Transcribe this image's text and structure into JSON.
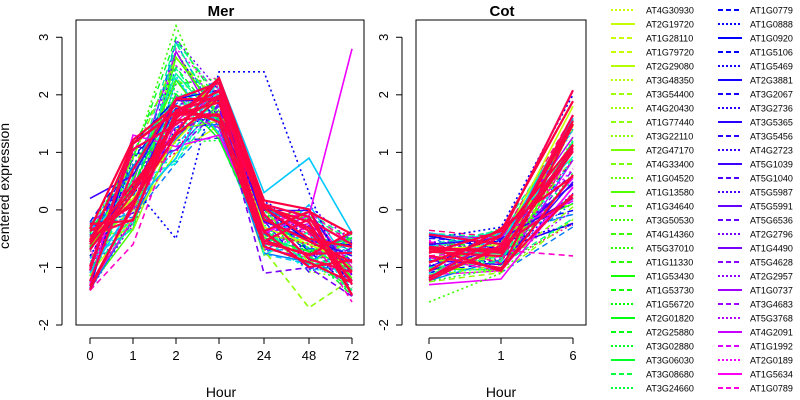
{
  "chart_data": [
    {
      "type": "line",
      "title": "Mer",
      "xlabel": "Hour",
      "ylabel": "centered expression",
      "categories": [
        "0",
        "1",
        "2",
        "6",
        "24",
        "48",
        "72"
      ],
      "y_ticks": [
        "-2",
        "-1",
        "0",
        "1",
        "2",
        "3"
      ],
      "ylim": [
        -2,
        3.3
      ],
      "representative_series": [
        {
          "values": [
            -0.5,
            0.2,
            1.2,
            2.0,
            -0.3,
            -0.6,
            -0.9
          ]
        },
        {
          "values": [
            -1.0,
            -0.3,
            2.9,
            1.6,
            -0.4,
            -0.8,
            -1.4
          ]
        },
        {
          "values": [
            -0.8,
            0.4,
            -0.5,
            2.4,
            2.4,
            0.3,
            -1.5
          ]
        },
        {
          "values": [
            -1.3,
            1.3,
            1.1,
            1.3,
            -0.4,
            -0.1,
            2.8
          ]
        },
        {
          "values": [
            -0.6,
            0.0,
            1.6,
            2.2,
            -0.7,
            -1.7,
            -1.2
          ]
        },
        {
          "values": [
            -0.9,
            -0.2,
            1.8,
            2.0,
            -0.5,
            -0.9,
            -1.3
          ]
        },
        {
          "values": [
            0.2,
            0.6,
            1.9,
            1.9,
            -0.2,
            -0.5,
            -0.8
          ]
        },
        {
          "values": [
            -1.4,
            -0.6,
            1.4,
            2.1,
            0.1,
            -0.4,
            -1.6
          ]
        },
        {
          "values": [
            -0.3,
            0.9,
            3.2,
            1.5,
            -0.6,
            -0.7,
            -1.0
          ]
        },
        {
          "values": [
            -1.1,
            0.1,
            0.9,
            2.3,
            0.3,
            0.9,
            -0.4
          ]
        },
        {
          "values": [
            -0.7,
            0.3,
            1.3,
            1.8,
            -1.1,
            -1.0,
            -1.5
          ]
        },
        {
          "values": [
            -1.0,
            0.5,
            1.0,
            2.2,
            -0.4,
            -0.6,
            -1.3
          ]
        }
      ],
      "series_note": "dense overplot of ~60 gene profiles; red bold trend on top"
    },
    {
      "type": "line",
      "title": "Cot",
      "xlabel": "Hour",
      "categories": [
        "0",
        "1",
        "6"
      ],
      "y_ticks": [
        "-2",
        "-1",
        "0",
        "1",
        "2",
        "3"
      ],
      "ylim": [
        -2,
        3.3
      ],
      "representative_series": [
        {
          "values": [
            -0.7,
            -0.6,
            1.8
          ]
        },
        {
          "values": [
            -1.0,
            -0.9,
            1.2
          ]
        },
        {
          "values": [
            -0.5,
            -0.3,
            2.0
          ]
        },
        {
          "values": [
            -1.3,
            -1.2,
            0.4
          ]
        },
        {
          "values": [
            -0.9,
            -0.8,
            1.5
          ]
        },
        {
          "values": [
            -1.1,
            -1.0,
            0.9
          ]
        },
        {
          "values": [
            -0.6,
            -0.5,
            0.2
          ]
        },
        {
          "values": [
            -0.8,
            -0.7,
            -0.8
          ]
        },
        {
          "values": [
            -1.6,
            -1.1,
            1.1
          ]
        },
        {
          "values": [
            -0.4,
            -0.6,
            1.6
          ]
        }
      ]
    }
  ],
  "legend": {
    "col1": [
      {
        "label": "AT4G30930",
        "color": "#c8ff00",
        "dash": "dot"
      },
      {
        "label": "AT2G19720",
        "color": "#c8ff00",
        "dash": "solid"
      },
      {
        "label": "AT1G28110",
        "color": "#c8ff00",
        "dash": "dash"
      },
      {
        "label": "AT1G79720",
        "color": "#c8ff00",
        "dash": "dash"
      },
      {
        "label": "AT2G29080",
        "color": "#b4ff00",
        "dash": "solid"
      },
      {
        "label": "AT3G48350",
        "color": "#b4ff00",
        "dash": "dot"
      },
      {
        "label": "AT3G54400",
        "color": "#a0ff00",
        "dash": "dash"
      },
      {
        "label": "AT4G20430",
        "color": "#a0ff00",
        "dash": "dot"
      },
      {
        "label": "AT1G77440",
        "color": "#8cff00",
        "dash": "dash"
      },
      {
        "label": "AT3G22110",
        "color": "#8cff00",
        "dash": "dot"
      },
      {
        "label": "AT2G47170",
        "color": "#78ff00",
        "dash": "solid"
      },
      {
        "label": "AT4G33400",
        "color": "#78ff00",
        "dash": "dash"
      },
      {
        "label": "AT1G04520",
        "color": "#64ff00",
        "dash": "dot"
      },
      {
        "label": "AT1G13580",
        "color": "#50ff00",
        "dash": "solid"
      },
      {
        "label": "AT1G34640",
        "color": "#50ff00",
        "dash": "dash"
      },
      {
        "label": "AT3G50530",
        "color": "#3cff00",
        "dash": "dot"
      },
      {
        "label": "AT4G14360",
        "color": "#3cff00",
        "dash": "dash"
      },
      {
        "label": "AT5G37010",
        "color": "#28ff00",
        "dash": "dot"
      },
      {
        "label": "AT1G11330",
        "color": "#28ff00",
        "dash": "dash"
      },
      {
        "label": "AT1G53430",
        "color": "#14ff00",
        "dash": "solid"
      },
      {
        "label": "AT1G53730",
        "color": "#14ff00",
        "dash": "dash"
      },
      {
        "label": "AT1G56720",
        "color": "#00ff00",
        "dash": "dot"
      },
      {
        "label": "AT2G01820",
        "color": "#00ff14",
        "dash": "solid"
      },
      {
        "label": "AT2G25880",
        "color": "#00ff14",
        "dash": "dash"
      },
      {
        "label": "AT3G02880",
        "color": "#00ff28",
        "dash": "dot"
      },
      {
        "label": "AT3G06030",
        "color": "#00ff28",
        "dash": "solid"
      },
      {
        "label": "AT3G08680",
        "color": "#00ff3c",
        "dash": "dash"
      },
      {
        "label": "AT3G24660",
        "color": "#00ff3c",
        "dash": "dot"
      }
    ],
    "col2": [
      {
        "label": "AT1G0779",
        "color": "#0000ff",
        "dash": "dash"
      },
      {
        "label": "AT1G0888",
        "color": "#0000ff",
        "dash": "dot"
      },
      {
        "label": "AT1G0920",
        "color": "#0000ff",
        "dash": "solid"
      },
      {
        "label": "AT1G5106",
        "color": "#0000ff",
        "dash": "dash"
      },
      {
        "label": "AT1G5469",
        "color": "#1400ff",
        "dash": "dot"
      },
      {
        "label": "AT2G3881",
        "color": "#1400ff",
        "dash": "solid"
      },
      {
        "label": "AT3G2067",
        "color": "#1400ff",
        "dash": "dash"
      },
      {
        "label": "AT3G2736",
        "color": "#2800ff",
        "dash": "dot"
      },
      {
        "label": "AT3G5365",
        "color": "#2800ff",
        "dash": "solid"
      },
      {
        "label": "AT3G5456",
        "color": "#2800ff",
        "dash": "dash"
      },
      {
        "label": "AT4G2723",
        "color": "#3c00ff",
        "dash": "dot"
      },
      {
        "label": "AT5G1039",
        "color": "#3c00ff",
        "dash": "solid"
      },
      {
        "label": "AT5G1040",
        "color": "#5000ff",
        "dash": "dash"
      },
      {
        "label": "AT5G5987",
        "color": "#5000ff",
        "dash": "dot"
      },
      {
        "label": "AT5G5991",
        "color": "#6400ff",
        "dash": "solid"
      },
      {
        "label": "AT5G6536",
        "color": "#6400ff",
        "dash": "dash"
      },
      {
        "label": "AT2G2796",
        "color": "#7800ff",
        "dash": "dot"
      },
      {
        "label": "AT1G4490",
        "color": "#7800ff",
        "dash": "solid"
      },
      {
        "label": "AT5G4628",
        "color": "#8c00ff",
        "dash": "dash"
      },
      {
        "label": "AT2G2957",
        "color": "#8c00ff",
        "dash": "dot"
      },
      {
        "label": "AT1G0737",
        "color": "#a000ff",
        "dash": "solid"
      },
      {
        "label": "AT3G4683",
        "color": "#a000ff",
        "dash": "dash"
      },
      {
        "label": "AT5G3768",
        "color": "#b400ff",
        "dash": "dot"
      },
      {
        "label": "AT4G2091",
        "color": "#c800ff",
        "dash": "solid"
      },
      {
        "label": "AT1G1992",
        "color": "#dc00ff",
        "dash": "dash"
      },
      {
        "label": "AT2G0189",
        "color": "#f000ff",
        "dash": "dot"
      },
      {
        "label": "AT1G5634",
        "color": "#ff00f0",
        "dash": "solid"
      },
      {
        "label": "AT1G0789",
        "color": "#ff00dc",
        "dash": "dash"
      }
    ]
  }
}
